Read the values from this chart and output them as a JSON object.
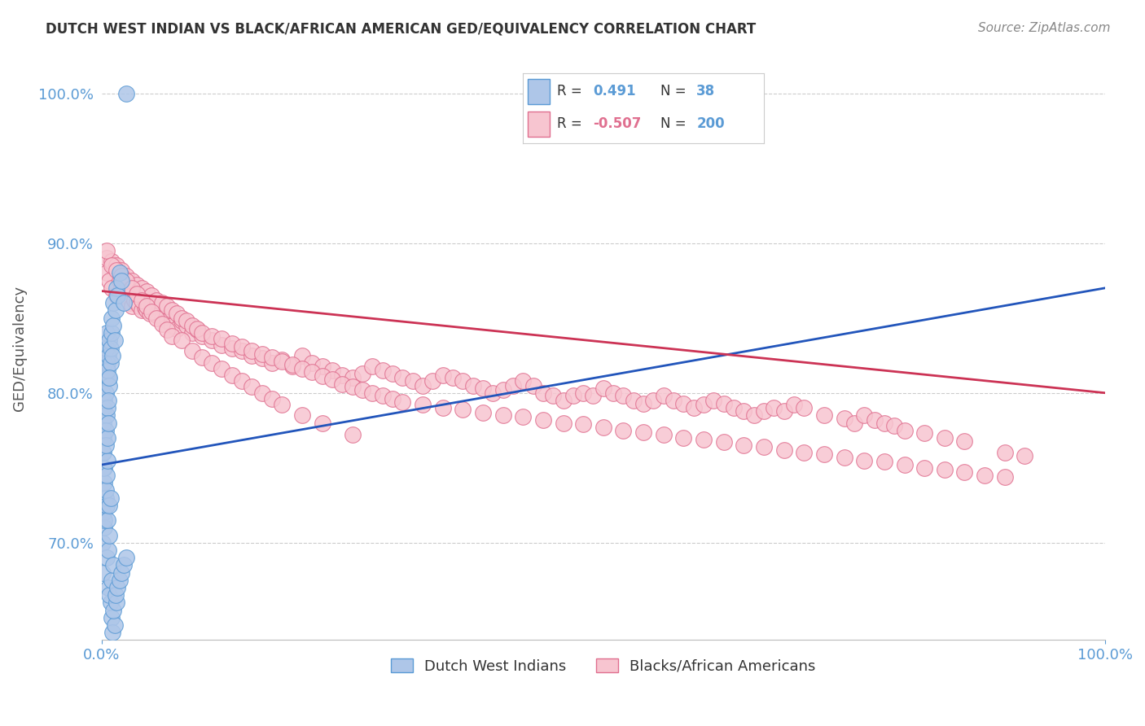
{
  "title": "DUTCH WEST INDIAN VS BLACK/AFRICAN AMERICAN GED/EQUIVALENCY CORRELATION CHART",
  "source": "Source: ZipAtlas.com",
  "ylabel": "GED/Equivalency",
  "xlim": [
    0.0,
    1.0
  ],
  "ylim": [
    0.635,
    1.025
  ],
  "yticks": [
    0.7,
    0.8,
    0.9,
    1.0
  ],
  "ytick_labels": [
    "70.0%",
    "80.0%",
    "90.0%",
    "100.0%"
  ],
  "xtick_labels": [
    "0.0%",
    "100.0%"
  ],
  "legend1_R": "0.491",
  "legend1_N": "38",
  "legend2_R": "-0.507",
  "legend2_N": "200",
  "blue_fill_color": "#aec6e8",
  "blue_edge_color": "#5b9bd5",
  "pink_fill_color": "#f7c5d0",
  "pink_edge_color": "#e07090",
  "blue_line_color": "#2255bb",
  "pink_line_color": "#cc3355",
  "grid_color": "#cccccc",
  "background_color": "#ffffff",
  "blue_scatter_x": [
    0.001,
    0.002,
    0.001,
    0.003,
    0.002,
    0.003,
    0.004,
    0.002,
    0.003,
    0.005,
    0.004,
    0.005,
    0.006,
    0.004,
    0.006,
    0.007,
    0.005,
    0.007,
    0.008,
    0.006,
    0.008,
    0.009,
    0.007,
    0.009,
    0.01,
    0.008,
    0.01,
    0.012,
    0.011,
    0.013,
    0.012,
    0.015,
    0.014,
    0.016,
    0.018,
    0.02,
    0.022,
    0.025
  ],
  "blue_scatter_y": [
    0.8,
    0.79,
    0.76,
    0.75,
    0.78,
    0.82,
    0.81,
    0.77,
    0.795,
    0.785,
    0.775,
    0.83,
    0.82,
    0.8,
    0.79,
    0.81,
    0.84,
    0.825,
    0.835,
    0.815,
    0.805,
    0.82,
    0.795,
    0.83,
    0.84,
    0.81,
    0.85,
    0.845,
    0.825,
    0.835,
    0.86,
    0.87,
    0.855,
    0.865,
    0.88,
    0.875,
    0.86,
    1.0
  ],
  "blue_scatter_y_low": [
    0.68,
    0.72,
    0.7,
    0.74,
    0.76,
    0.71,
    0.73,
    0.75,
    0.715,
    0.725,
    0.735,
    0.745,
    0.755,
    0.765,
    0.77,
    0.78,
    0.69,
    0.695,
    0.705,
    0.715,
    0.725,
    0.73,
    0.67,
    0.66,
    0.65,
    0.665,
    0.675,
    0.685,
    0.64,
    0.645,
    0.655,
    0.66,
    0.665,
    0.67,
    0.675,
    0.68,
    0.685,
    0.69
  ],
  "pink_scatter_x": [
    0.005,
    0.008,
    0.01,
    0.012,
    0.015,
    0.018,
    0.02,
    0.022,
    0.025,
    0.028,
    0.03,
    0.033,
    0.035,
    0.038,
    0.04,
    0.043,
    0.045,
    0.048,
    0.05,
    0.055,
    0.06,
    0.065,
    0.07,
    0.075,
    0.08,
    0.085,
    0.09,
    0.095,
    0.1,
    0.11,
    0.12,
    0.13,
    0.14,
    0.15,
    0.16,
    0.17,
    0.18,
    0.19,
    0.2,
    0.21,
    0.22,
    0.23,
    0.24,
    0.25,
    0.26,
    0.27,
    0.28,
    0.29,
    0.3,
    0.31,
    0.32,
    0.33,
    0.34,
    0.35,
    0.36,
    0.37,
    0.38,
    0.39,
    0.4,
    0.41,
    0.42,
    0.43,
    0.44,
    0.45,
    0.46,
    0.47,
    0.48,
    0.49,
    0.5,
    0.51,
    0.52,
    0.53,
    0.54,
    0.55,
    0.56,
    0.57,
    0.58,
    0.59,
    0.6,
    0.61,
    0.62,
    0.63,
    0.64,
    0.65,
    0.66,
    0.67,
    0.68,
    0.69,
    0.7,
    0.72,
    0.74,
    0.75,
    0.76,
    0.77,
    0.78,
    0.79,
    0.8,
    0.82,
    0.84,
    0.86,
    0.9,
    0.92,
    0.005,
    0.01,
    0.015,
    0.02,
    0.025,
    0.03,
    0.035,
    0.04,
    0.045,
    0.05,
    0.055,
    0.06,
    0.065,
    0.07,
    0.075,
    0.08,
    0.085,
    0.09,
    0.095,
    0.1,
    0.11,
    0.12,
    0.13,
    0.14,
    0.15,
    0.16,
    0.17,
    0.18,
    0.19,
    0.2,
    0.21,
    0.22,
    0.23,
    0.24,
    0.25,
    0.26,
    0.27,
    0.28,
    0.29,
    0.3,
    0.32,
    0.34,
    0.36,
    0.38,
    0.4,
    0.42,
    0.44,
    0.46,
    0.48,
    0.5,
    0.52,
    0.54,
    0.56,
    0.58,
    0.6,
    0.62,
    0.64,
    0.66,
    0.68,
    0.7,
    0.72,
    0.74,
    0.76,
    0.78,
    0.8,
    0.82,
    0.84,
    0.86,
    0.88,
    0.9,
    0.005,
    0.01,
    0.015,
    0.02,
    0.025,
    0.03,
    0.035,
    0.04,
    0.045,
    0.05,
    0.055,
    0.06,
    0.065,
    0.07,
    0.08,
    0.09,
    0.1,
    0.11,
    0.12,
    0.13,
    0.14,
    0.15,
    0.16,
    0.17,
    0.18,
    0.2,
    0.22,
    0.25
  ],
  "pink_scatter_y": [
    0.88,
    0.875,
    0.87,
    0.885,
    0.865,
    0.875,
    0.87,
    0.868,
    0.865,
    0.86,
    0.858,
    0.862,
    0.86,
    0.858,
    0.855,
    0.857,
    0.855,
    0.853,
    0.858,
    0.852,
    0.85,
    0.848,
    0.845,
    0.843,
    0.848,
    0.845,
    0.84,
    0.842,
    0.838,
    0.835,
    0.832,
    0.83,
    0.828,
    0.825,
    0.823,
    0.82,
    0.822,
    0.818,
    0.825,
    0.82,
    0.818,
    0.815,
    0.812,
    0.81,
    0.813,
    0.818,
    0.815,
    0.813,
    0.81,
    0.808,
    0.805,
    0.808,
    0.812,
    0.81,
    0.808,
    0.805,
    0.803,
    0.8,
    0.802,
    0.805,
    0.808,
    0.805,
    0.8,
    0.798,
    0.795,
    0.798,
    0.8,
    0.798,
    0.803,
    0.8,
    0.798,
    0.795,
    0.793,
    0.795,
    0.798,
    0.795,
    0.793,
    0.79,
    0.792,
    0.795,
    0.793,
    0.79,
    0.788,
    0.785,
    0.788,
    0.79,
    0.788,
    0.792,
    0.79,
    0.785,
    0.783,
    0.78,
    0.785,
    0.782,
    0.78,
    0.778,
    0.775,
    0.773,
    0.77,
    0.768,
    0.76,
    0.758,
    0.89,
    0.888,
    0.885,
    0.882,
    0.878,
    0.875,
    0.872,
    0.87,
    0.868,
    0.865,
    0.862,
    0.86,
    0.858,
    0.855,
    0.853,
    0.85,
    0.848,
    0.845,
    0.843,
    0.84,
    0.838,
    0.836,
    0.833,
    0.831,
    0.828,
    0.826,
    0.824,
    0.821,
    0.819,
    0.816,
    0.814,
    0.811,
    0.809,
    0.806,
    0.804,
    0.802,
    0.8,
    0.798,
    0.796,
    0.794,
    0.792,
    0.79,
    0.789,
    0.787,
    0.785,
    0.784,
    0.782,
    0.78,
    0.779,
    0.777,
    0.775,
    0.774,
    0.772,
    0.77,
    0.769,
    0.767,
    0.765,
    0.764,
    0.762,
    0.76,
    0.759,
    0.757,
    0.755,
    0.754,
    0.752,
    0.75,
    0.749,
    0.747,
    0.745,
    0.744,
    0.895,
    0.885,
    0.882,
    0.878,
    0.875,
    0.87,
    0.866,
    0.862,
    0.858,
    0.854,
    0.85,
    0.846,
    0.842,
    0.838,
    0.835,
    0.828,
    0.824,
    0.82,
    0.816,
    0.812,
    0.808,
    0.804,
    0.8,
    0.796,
    0.792,
    0.785,
    0.78,
    0.772
  ],
  "blue_trend_x": [
    0.0,
    1.0
  ],
  "blue_trend_y": [
    0.752,
    0.87
  ],
  "pink_trend_x": [
    0.0,
    1.0
  ],
  "pink_trend_y": [
    0.868,
    0.8
  ]
}
